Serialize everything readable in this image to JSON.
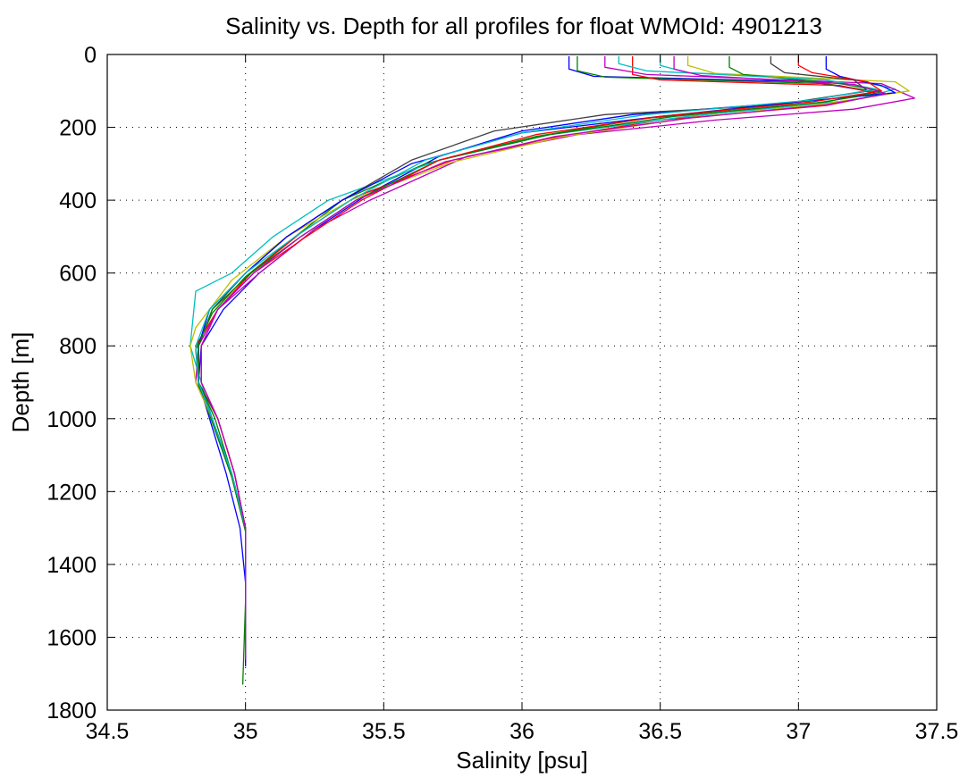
{
  "chart_data": {
    "type": "line",
    "title": "Salinity vs. Depth for all profiles for float WMOId: 4901213",
    "xlabel": "Salinity [psu]",
    "ylabel": "Depth [m]",
    "xlim": [
      34.5,
      37.5
    ],
    "ylim": [
      0,
      1800
    ],
    "y_reversed": true,
    "grid": true,
    "legend": "none",
    "x_ticks": [
      "34.5",
      "35",
      "35.5",
      "36",
      "36.5",
      "37",
      "37.5"
    ],
    "y_ticks": [
      "0",
      "200",
      "400",
      "600",
      "800",
      "1000",
      "1200",
      "1400",
      "1600",
      "1800"
    ],
    "colors": [
      "#0000ff",
      "#008000",
      "#ff0000",
      "#00bfbf",
      "#bf00bf",
      "#bfbf00",
      "#404040"
    ],
    "series": [
      {
        "x": [
          36.17,
          36.17,
          36.26,
          37.05,
          37.25,
          37.0,
          36.4,
          36.0,
          35.7,
          35.45,
          35.25,
          35.05,
          34.92,
          34.84,
          34.83,
          34.87,
          34.93,
          34.98,
          35.0,
          35.0,
          35.0
        ],
        "y": [
          5,
          40,
          60,
          75,
          100,
          130,
          165,
          210,
          280,
          380,
          480,
          600,
          700,
          800,
          900,
          1000,
          1150,
          1300,
          1450,
          1600,
          1680
        ]
      },
      {
        "x": [
          36.2,
          36.2,
          36.3,
          37.1,
          37.3,
          37.05,
          36.45,
          36.05,
          35.65,
          35.35,
          35.18,
          35.0,
          34.88,
          34.82,
          34.83,
          34.88,
          34.95,
          35.0,
          35.0,
          34.99
        ],
        "y": [
          5,
          45,
          62,
          80,
          105,
          135,
          175,
          225,
          300,
          400,
          500,
          610,
          710,
          810,
          910,
          1010,
          1160,
          1310,
          1500,
          1730
        ]
      },
      {
        "x": [
          36.4,
          36.4,
          36.5,
          37.15,
          37.3,
          37.1,
          36.5,
          36.1,
          35.75,
          35.4,
          35.2,
          35.02,
          34.9,
          34.82,
          34.83,
          34.9,
          34.96,
          35.0,
          35.0,
          35.0
        ],
        "y": [
          5,
          55,
          70,
          85,
          110,
          140,
          180,
          230,
          290,
          390,
          490,
          600,
          700,
          800,
          900,
          1000,
          1150,
          1300,
          1450,
          1650
        ]
      },
      {
        "x": [
          36.5,
          36.5,
          36.6,
          37.2,
          37.35,
          37.2,
          36.6,
          36.1,
          35.7,
          35.3,
          35.1,
          34.95,
          34.82,
          34.8,
          34.82,
          34.88,
          34.95,
          35.0,
          35.0,
          35.0
        ],
        "y": [
          5,
          30,
          50,
          70,
          95,
          125,
          170,
          220,
          290,
          400,
          500,
          600,
          650,
          800,
          850,
          1000,
          1150,
          1300,
          1450,
          1660
        ]
      },
      {
        "x": [
          36.3,
          36.3,
          36.45,
          37.3,
          37.42,
          37.2,
          36.7,
          36.2,
          35.8,
          35.45,
          35.25,
          35.05,
          34.9,
          34.83,
          34.82,
          34.88,
          34.95,
          35.0,
          35.0,
          35.0
        ],
        "y": [
          5,
          35,
          55,
          80,
          120,
          150,
          180,
          220,
          280,
          400,
          480,
          600,
          700,
          800,
          900,
          1000,
          1150,
          1300,
          1450,
          1620
        ]
      },
      {
        "x": [
          36.6,
          36.6,
          36.7,
          37.35,
          37.4,
          37.1,
          36.6,
          36.15,
          35.75,
          35.38,
          35.15,
          34.95,
          34.82,
          34.8,
          34.82,
          34.88,
          34.95,
          35.0,
          35.0,
          35.0
        ],
        "y": [
          5,
          30,
          52,
          75,
          100,
          135,
          175,
          225,
          295,
          400,
          500,
          620,
          750,
          800,
          900,
          1000,
          1150,
          1300,
          1450,
          1640
        ]
      },
      {
        "x": [
          36.9,
          36.9,
          36.95,
          37.2,
          37.25,
          36.9,
          36.3,
          35.9,
          35.6,
          35.35,
          35.15,
          35.0,
          34.88,
          34.83,
          34.83,
          34.9,
          34.96,
          35.0,
          35.0,
          35.0
        ],
        "y": [
          5,
          25,
          50,
          70,
          100,
          140,
          165,
          210,
          290,
          400,
          500,
          600,
          700,
          800,
          900,
          1000,
          1150,
          1300,
          1450,
          1630
        ]
      },
      {
        "x": [
          37.1,
          37.1,
          37.15,
          37.3,
          37.35,
          37.0,
          36.5,
          36.0,
          35.6,
          35.35,
          35.15,
          35.0,
          34.87,
          34.83,
          34.83,
          34.88,
          34.95,
          35.0,
          35.0,
          35.0
        ],
        "y": [
          5,
          40,
          60,
          85,
          105,
          130,
          170,
          215,
          300,
          400,
          500,
          600,
          700,
          800,
          900,
          1000,
          1150,
          1300,
          1450,
          1660
        ]
      },
      {
        "x": [
          36.75,
          36.75,
          36.8,
          37.15,
          37.3,
          37.1,
          36.55,
          36.1,
          35.7,
          35.4,
          35.2,
          35.02,
          34.88,
          34.83,
          34.83,
          34.89,
          34.95,
          35.0,
          35.0,
          35.0
        ],
        "y": [
          5,
          35,
          55,
          80,
          100,
          130,
          170,
          220,
          290,
          400,
          500,
          600,
          700,
          800,
          900,
          1000,
          1150,
          1300,
          1450,
          1650
        ]
      },
      {
        "x": [
          37.0,
          37.0,
          37.05,
          37.25,
          37.3,
          37.05,
          36.5,
          36.05,
          35.7,
          35.42,
          35.22,
          35.03,
          34.9,
          34.84,
          34.84,
          34.9,
          34.96,
          35.0,
          35.0,
          35.0
        ],
        "y": [
          5,
          30,
          50,
          75,
          100,
          130,
          170,
          220,
          290,
          400,
          500,
          600,
          700,
          800,
          900,
          1000,
          1150,
          1300,
          1450,
          1640
        ]
      },
      {
        "x": [
          36.35,
          36.35,
          36.45,
          37.1,
          37.28,
          37.05,
          36.45,
          36.0,
          35.65,
          35.38,
          35.18,
          35.0,
          34.87,
          34.82,
          34.83,
          34.88,
          34.95,
          35.0,
          35.0,
          35.0
        ],
        "y": [
          5,
          25,
          45,
          70,
          95,
          125,
          165,
          215,
          290,
          400,
          500,
          600,
          700,
          800,
          900,
          1000,
          1150,
          1300,
          1450,
          1650
        ]
      },
      {
        "x": [
          36.55,
          36.55,
          36.65,
          37.2,
          37.32,
          37.1,
          36.6,
          36.12,
          35.72,
          35.4,
          35.2,
          35.03,
          34.9,
          34.84,
          34.84,
          34.9,
          34.96,
          35.0,
          35.0,
          35.0
        ],
        "y": [
          5,
          40,
          58,
          82,
          108,
          138,
          175,
          225,
          295,
          400,
          500,
          600,
          700,
          800,
          900,
          1000,
          1150,
          1300,
          1450,
          1660
        ]
      }
    ]
  }
}
